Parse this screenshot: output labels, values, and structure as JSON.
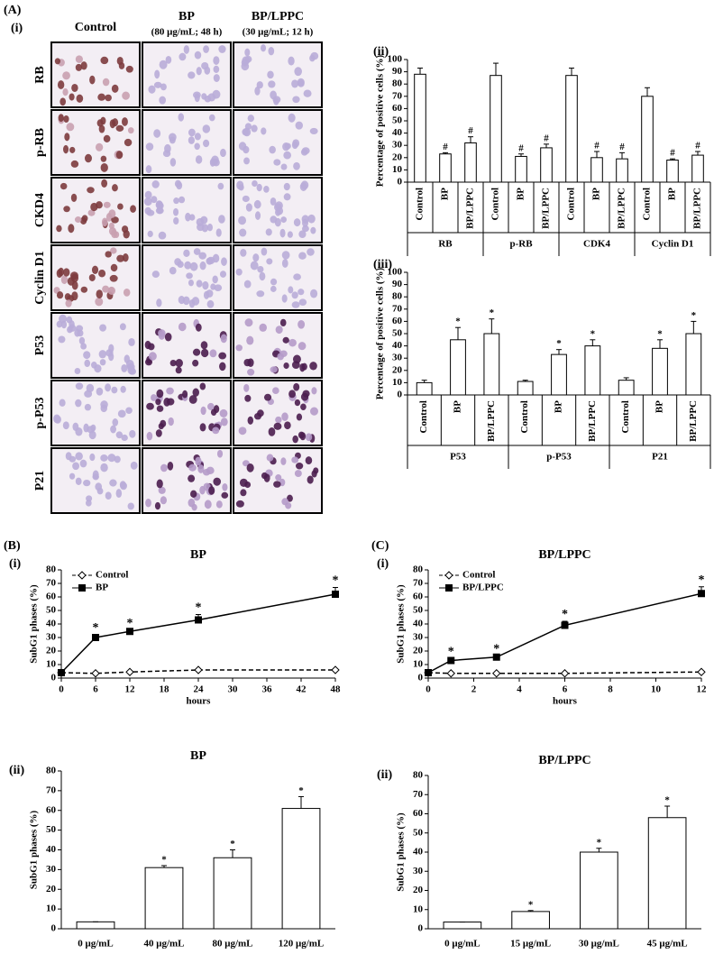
{
  "figure": {
    "panels": [
      "(A)",
      "(B)",
      "(C)"
    ],
    "micrograph": {
      "panel": "(i)",
      "columns": [
        "Control",
        "BP",
        "BP/LPPC"
      ],
      "column_notes": [
        null,
        "(80 μg/mL; 48 h)",
        "(30 μg/mL; 12 h)"
      ],
      "rows": [
        "RB",
        "p-RB",
        "CKD4",
        "Cyclin D1",
        "P53",
        "p-P53",
        "P21"
      ]
    }
  },
  "chart_data": [
    {
      "type": "bar",
      "panel": "(ii)",
      "ylabel": "Percentage of positive cells (%)",
      "color": "#ffffff",
      "categories": [
        "Control",
        "BP",
        "BP/LPPC",
        "Control",
        "BP",
        "BP/LPPC",
        "Control",
        "BP",
        "BP/LPPC",
        "Control",
        "BP",
        "BP/LPPC"
      ],
      "groups": [
        "RB",
        "p-RB",
        "CDK4",
        "Cyclin D1"
      ],
      "values": [
        88,
        23,
        32,
        87,
        21,
        28,
        87,
        20,
        19,
        70,
        18,
        22
      ],
      "errors": [
        5,
        1,
        5,
        10,
        2,
        3,
        6,
        5,
        5,
        7,
        1,
        3
      ],
      "annotations": [
        null,
        "#",
        "#",
        null,
        "#",
        "#",
        null,
        "#",
        "#",
        null,
        "#",
        "#"
      ],
      "ylim": [
        0,
        100
      ],
      "yticks": [
        0,
        10,
        20,
        30,
        40,
        50,
        60,
        70,
        80,
        90,
        100
      ]
    },
    {
      "type": "bar",
      "panel": "(iii)",
      "ylabel": "Percentage of positive cells (%)",
      "color": "#ffffff",
      "categories": [
        "Control",
        "BP",
        "BP/LPPC",
        "Control",
        "BP",
        "BP/LPPC",
        "Control",
        "BP",
        "BP/LPPC"
      ],
      "groups": [
        "P53",
        "p-P53",
        "P21"
      ],
      "values": [
        10,
        45,
        50,
        11,
        33,
        40,
        12,
        38,
        50
      ],
      "errors": [
        2,
        10,
        12,
        1,
        4,
        5,
        2,
        7,
        10
      ],
      "annotations": [
        null,
        "*",
        "*",
        null,
        "*",
        "*",
        null,
        "*",
        "*"
      ],
      "ylim": [
        0,
        100
      ],
      "yticks": [
        0,
        10,
        20,
        30,
        40,
        50,
        60,
        70,
        80,
        90,
        100
      ]
    },
    {
      "type": "line",
      "panel": "(i)",
      "title": "BP",
      "xlabel": "hours",
      "ylabel": "SubG1 phases (%)",
      "legend": "top-left",
      "x": [
        0,
        6,
        12,
        24,
        48
      ],
      "series": [
        {
          "name": "Control",
          "color": "#000000",
          "style": "dashed",
          "marker": "diamond",
          "values": [
            4,
            3.5,
            4.5,
            6,
            6
          ]
        },
        {
          "name": "BP",
          "color": "#000000",
          "style": "solid",
          "marker": "square",
          "values": [
            4,
            30,
            34.5,
            43,
            62
          ],
          "errors": [
            0,
            2,
            1,
            4,
            5
          ],
          "annotations": [
            null,
            "*",
            "*",
            "*",
            "*"
          ]
        }
      ],
      "xlim": [
        0,
        48
      ],
      "xticks": [
        0,
        6,
        12,
        18,
        24,
        30,
        36,
        42,
        48
      ],
      "ylim": [
        0,
        80
      ],
      "yticks": [
        0,
        10,
        20,
        30,
        40,
        50,
        60,
        70,
        80
      ]
    },
    {
      "type": "line",
      "panel": "(i)",
      "title": "BP/LPPC",
      "xlabel": "hours",
      "ylabel": "SubG1 phases (%)",
      "legend": "top-left",
      "x": [
        0,
        1,
        3,
        6,
        12
      ],
      "series": [
        {
          "name": "Control",
          "color": "#000000",
          "style": "dashed",
          "marker": "diamond",
          "values": [
            4,
            3.5,
            3.5,
            3.5,
            4.5
          ]
        },
        {
          "name": "BP/LPPC",
          "color": "#000000",
          "style": "solid",
          "marker": "square",
          "values": [
            4,
            13,
            15.5,
            39,
            62.5
          ],
          "errors": [
            0,
            1.5,
            1,
            3,
            5
          ],
          "annotations": [
            null,
            "*",
            "*",
            "*",
            "*"
          ]
        }
      ],
      "xlim": [
        0,
        12
      ],
      "xticks": [
        0,
        2,
        4,
        6,
        8,
        10,
        12
      ],
      "ylim": [
        0,
        80
      ],
      "yticks": [
        0,
        10,
        20,
        30,
        40,
        50,
        60,
        70,
        80
      ]
    },
    {
      "type": "bar",
      "panel": "(ii)",
      "title": "BP",
      "ylabel": "SubG1 phases (%)",
      "color": "#ffffff",
      "categories": [
        "0 μg/mL",
        "40 μg/mL",
        "80 μg/mL",
        "120 μg/mL"
      ],
      "values": [
        3.5,
        31,
        36,
        61
      ],
      "errors": [
        0,
        1,
        4,
        6
      ],
      "annotations": [
        null,
        "*",
        "*",
        "*"
      ],
      "ylim": [
        0,
        80
      ],
      "yticks": [
        0,
        10,
        20,
        30,
        40,
        50,
        60,
        70,
        80
      ]
    },
    {
      "type": "bar",
      "panel": "(ii)",
      "title": "BP/LPPC",
      "ylabel": "SubG1 phases (%)",
      "color": "#ffffff",
      "categories": [
        "0 μg/mL",
        "15 μg/mL",
        "30 μg/mL",
        "45 μg/mL"
      ],
      "values": [
        3.5,
        9,
        40,
        58
      ],
      "errors": [
        0,
        0.5,
        2,
        6
      ],
      "annotations": [
        null,
        "*",
        "*",
        "*"
      ],
      "ylim": [
        0,
        80
      ],
      "yticks": [
        0,
        10,
        20,
        30,
        40,
        50,
        60,
        70,
        80
      ]
    }
  ]
}
